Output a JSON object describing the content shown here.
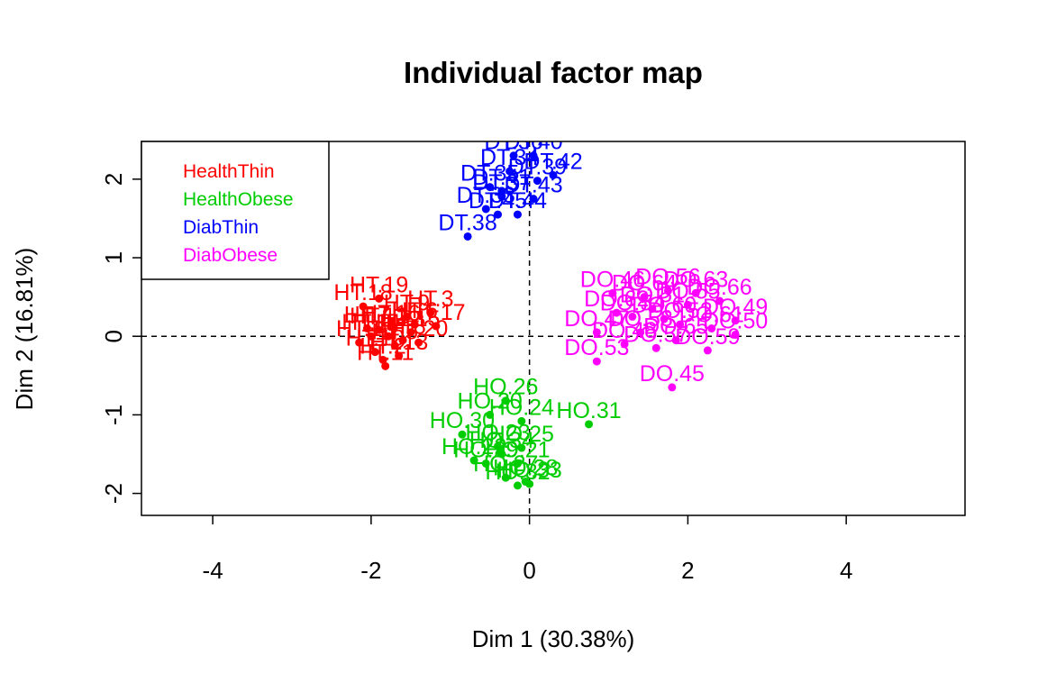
{
  "chart_data": {
    "type": "scatter",
    "title": "Individual factor map",
    "xlabel": "Dim 1 (30.38%)",
    "ylabel": "Dim 2 (16.81%)",
    "xlim": [
      -4.9,
      5.5
    ],
    "ylim": [
      -2.28,
      2.48
    ],
    "xticks": [
      -4,
      -2,
      0,
      2,
      4
    ],
    "yticks": [
      -2,
      -1,
      0,
      1,
      2
    ],
    "reference_lines": {
      "x": 0,
      "y": 0,
      "style": "dashed"
    },
    "legend": {
      "placement": "top-left",
      "entries": [
        {
          "label": "HealthThin",
          "color": "#FF0000"
        },
        {
          "label": "HealthObese",
          "color": "#00CD00"
        },
        {
          "label": "DiabThin",
          "color": "#0000FF"
        },
        {
          "label": "DiabObese",
          "color": "#FF00FF"
        }
      ]
    },
    "series": [
      {
        "name": "HealthThin",
        "color": "#FF0000",
        "points": [
          {
            "label": "HT.19",
            "x": -1.9,
            "y": 0.48
          },
          {
            "label": "HT.3",
            "x": -1.25,
            "y": 0.3
          },
          {
            "label": "HT.18",
            "x": -2.1,
            "y": 0.38
          },
          {
            "label": "HT.9",
            "x": -1.55,
            "y": 0.25
          },
          {
            "label": "HT.12",
            "x": -1.9,
            "y": 0.08
          },
          {
            "label": "HT.7",
            "x": -2.05,
            "y": 0.1
          },
          {
            "label": "HT.5",
            "x": -1.7,
            "y": -0.12
          },
          {
            "label": "HT.1",
            "x": -2.15,
            "y": -0.08
          },
          {
            "label": "HT.2",
            "x": -1.85,
            "y": -0.3
          },
          {
            "label": "HT.4",
            "x": -1.78,
            "y": 0.0
          },
          {
            "label": "HT.6",
            "x": -1.45,
            "y": 0.15
          },
          {
            "label": "HT.8",
            "x": -1.6,
            "y": -0.05
          },
          {
            "label": "HT.10",
            "x": -1.95,
            "y": -0.2
          },
          {
            "label": "HT.11",
            "x": -1.82,
            "y": -0.38
          },
          {
            "label": "HT.13",
            "x": -1.65,
            "y": -0.25
          },
          {
            "label": "HT.14",
            "x": -2.0,
            "y": 0.0
          },
          {
            "label": "HT.15",
            "x": -1.5,
            "y": 0.05
          },
          {
            "label": "HT.16",
            "x": -1.75,
            "y": 0.12
          },
          {
            "label": "HT.17",
            "x": -1.18,
            "y": 0.13
          },
          {
            "label": "HT.20",
            "x": -1.4,
            "y": -0.08
          }
        ]
      },
      {
        "name": "HealthObese",
        "color": "#00CD00",
        "points": [
          {
            "label": "HO.26",
            "x": -0.3,
            "y": -0.82
          },
          {
            "label": "HO.31",
            "x": 0.75,
            "y": -1.12
          },
          {
            "label": "HO.20",
            "x": -0.5,
            "y": -1.0
          },
          {
            "label": "HO.24",
            "x": -0.1,
            "y": -1.08
          },
          {
            "label": "HO.30",
            "x": -0.85,
            "y": -1.25
          },
          {
            "label": "HO.23",
            "x": -0.4,
            "y": -1.4
          },
          {
            "label": "HO.21",
            "x": -0.15,
            "y": -1.62
          },
          {
            "label": "HO.22",
            "x": -0.7,
            "y": -1.58
          },
          {
            "label": "HO.25",
            "x": -0.1,
            "y": -1.42
          },
          {
            "label": "HO.27",
            "x": -0.3,
            "y": -1.8
          },
          {
            "label": "HO.28",
            "x": -0.05,
            "y": -1.85
          },
          {
            "label": "HO.29",
            "x": -0.55,
            "y": -1.62
          },
          {
            "label": "HO.32",
            "x": -0.15,
            "y": -1.9
          },
          {
            "label": "HO.33",
            "x": 0.0,
            "y": -1.88
          },
          {
            "label": "HO.34",
            "x": -0.35,
            "y": -1.5
          }
        ]
      },
      {
        "name": "DiabThin",
        "color": "#0000FF",
        "points": [
          {
            "label": "DT.36",
            "x": -0.2,
            "y": 2.3
          },
          {
            "label": "DT.40",
            "x": 0.05,
            "y": 2.3
          },
          {
            "label": "DT.34",
            "x": -0.25,
            "y": 2.1
          },
          {
            "label": "DT.42",
            "x": 0.3,
            "y": 2.05
          },
          {
            "label": "DT.39",
            "x": 0.1,
            "y": 1.98
          },
          {
            "label": "DT.35",
            "x": -0.5,
            "y": 1.9
          },
          {
            "label": "DT.41",
            "x": -0.35,
            "y": 1.85
          },
          {
            "label": "DT.43",
            "x": 0.05,
            "y": 1.75
          },
          {
            "label": "DT.37",
            "x": -0.35,
            "y": 1.78
          },
          {
            "label": "DT.38",
            "x": -0.78,
            "y": 1.27
          },
          {
            "label": "DT.33",
            "x": -0.55,
            "y": 1.62
          },
          {
            "label": "DT.44",
            "x": -0.15,
            "y": 1.55
          },
          {
            "label": "DT.45",
            "x": -0.4,
            "y": 1.55
          }
        ]
      },
      {
        "name": "DiabObese",
        "color": "#FF00FF",
        "points": [
          {
            "label": "DO.56",
            "x": 1.75,
            "y": 0.58
          },
          {
            "label": "DO.49",
            "x": 2.6,
            "y": 0.2
          },
          {
            "label": "DO.61",
            "x": 2.3,
            "y": 0.1
          },
          {
            "label": "DO.50",
            "x": 2.6,
            "y": 0.02
          },
          {
            "label": "DO.45",
            "x": 1.8,
            "y": -0.65
          },
          {
            "label": "DO.46",
            "x": 1.05,
            "y": 0.55
          },
          {
            "label": "DO.47",
            "x": 0.85,
            "y": 0.05
          },
          {
            "label": "DO.48",
            "x": 1.2,
            "y": -0.1
          },
          {
            "label": "DO.51",
            "x": 1.55,
            "y": 0.35
          },
          {
            "label": "DO.52",
            "x": 1.9,
            "y": 0.15
          },
          {
            "label": "DO.53",
            "x": 0.85,
            "y": -0.32
          },
          {
            "label": "DO.54",
            "x": 1.3,
            "y": 0.25
          },
          {
            "label": "DO.55",
            "x": 2.0,
            "y": 0.4
          },
          {
            "label": "DO.57",
            "x": 1.6,
            "y": -0.15
          },
          {
            "label": "DO.58",
            "x": 1.4,
            "y": 0.05
          },
          {
            "label": "DO.59",
            "x": 2.25,
            "y": -0.18
          },
          {
            "label": "DO.60",
            "x": 1.7,
            "y": 0.22
          },
          {
            "label": "DO.62",
            "x": 1.1,
            "y": 0.3
          },
          {
            "label": "DO.63",
            "x": 2.1,
            "y": 0.55
          },
          {
            "label": "DO.64",
            "x": 1.45,
            "y": 0.5
          },
          {
            "label": "DO.65",
            "x": 1.85,
            "y": -0.05
          },
          {
            "label": "DO.66",
            "x": 2.4,
            "y": 0.45
          }
        ]
      }
    ]
  }
}
